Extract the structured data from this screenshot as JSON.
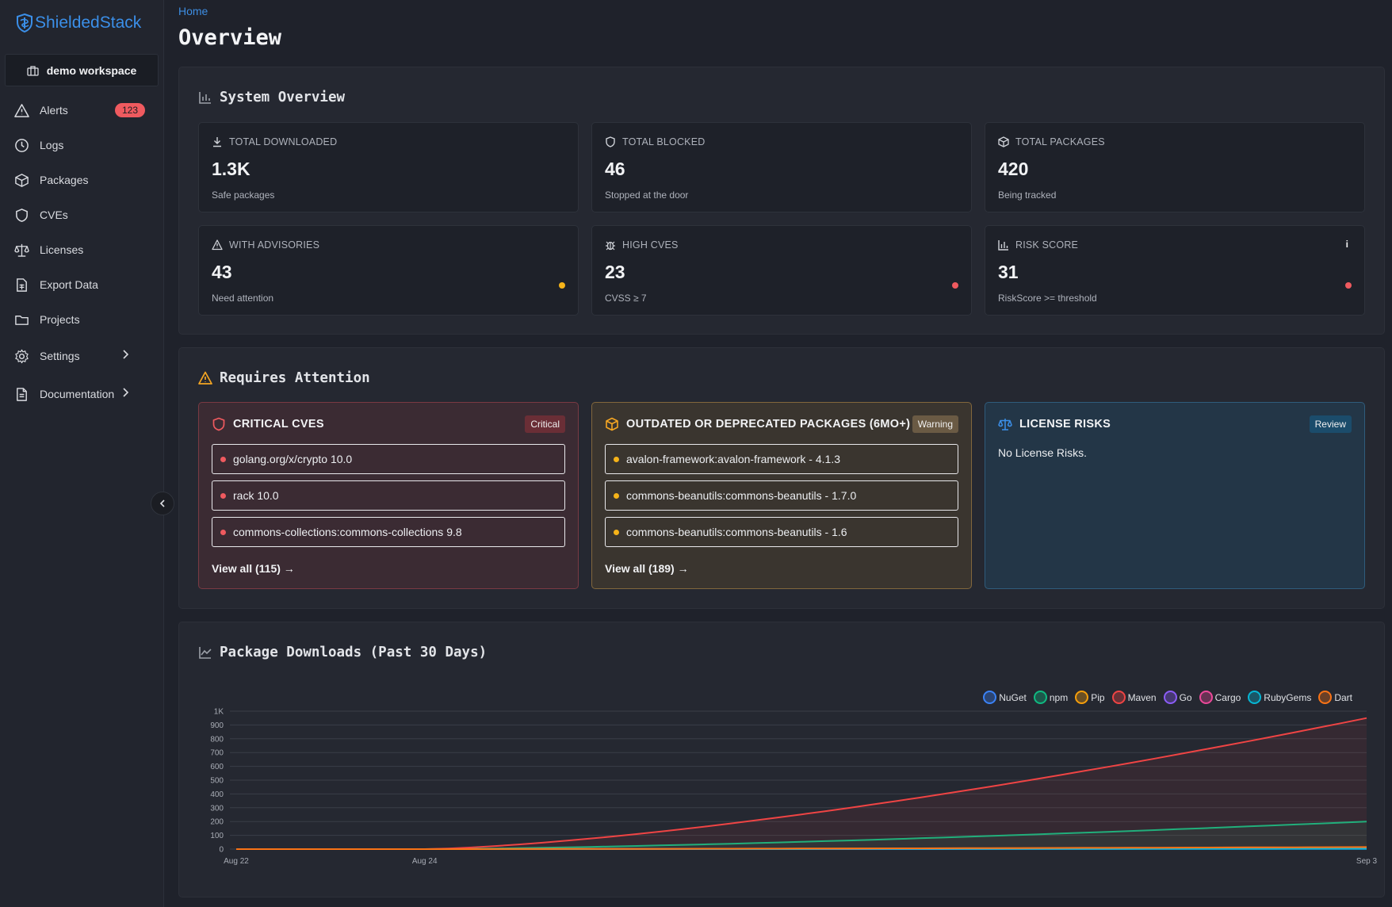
{
  "app": {
    "name": "ShieldedStack",
    "workspace": "demo workspace"
  },
  "sidebar": {
    "items": [
      {
        "label": "Alerts",
        "badge": "123",
        "icon": "alert-triangle-icon"
      },
      {
        "label": "Logs",
        "icon": "clock-icon"
      },
      {
        "label": "Packages",
        "icon": "package-icon"
      },
      {
        "label": "CVEs",
        "icon": "shield-icon"
      },
      {
        "label": "Licenses",
        "icon": "scale-icon"
      },
      {
        "label": "Export Data",
        "icon": "file-spreadsheet-icon"
      },
      {
        "label": "Projects",
        "icon": "folder-icon"
      },
      {
        "label": "Settings",
        "icon": "gear-icon"
      },
      {
        "label": "Documentation",
        "icon": "document-icon"
      }
    ]
  },
  "breadcrumb": "Home",
  "page_title": "Overview",
  "overview": {
    "title": "System Overview",
    "stats": [
      {
        "label": "TOTAL DOWNLOADED",
        "value": "1.3K",
        "sub": "Safe packages"
      },
      {
        "label": "TOTAL BLOCKED",
        "value": "46",
        "sub": "Stopped at the door"
      },
      {
        "label": "TOTAL PACKAGES",
        "value": "420",
        "sub": "Being tracked"
      },
      {
        "label": "WITH ADVISORIES",
        "value": "43",
        "sub": "Need attention",
        "status_color": "#f5b319"
      },
      {
        "label": "HIGH CVES",
        "value": "23",
        "sub": "CVSS ≥ 7",
        "status_color": "#ef5a5f"
      },
      {
        "label": "RISK SCORE",
        "value": "31",
        "sub": "RiskScore >= threshold",
        "status_color": "#ef5a5f",
        "info": "i"
      }
    ]
  },
  "attention": {
    "title": "Requires Attention",
    "critical": {
      "title": "CRITICAL CVES",
      "tag": "Critical",
      "items": [
        "golang.org/x/crypto 10.0",
        "rack 10.0",
        "commons-collections:commons-collections 9.8"
      ],
      "view_all": "View all (115) →"
    },
    "outdated": {
      "title": "OUTDATED OR DEPRECATED PACKAGES (6MO+)",
      "tag": "Warning",
      "items": [
        "avalon-framework:avalon-framework - 4.1.3",
        "commons-beanutils:commons-beanutils - 1.7.0",
        "commons-beanutils:commons-beanutils - 1.6"
      ],
      "view_all": "View all (189) →"
    },
    "license": {
      "title": "LICENSE RISKS",
      "tag": "Review",
      "message": "No License Risks."
    }
  },
  "downloads": {
    "title": "Package Downloads (Past 30 Days)"
  },
  "chart_data": {
    "type": "line",
    "x": [
      "Aug 22",
      "Aug 24",
      "Sep 3"
    ],
    "y_ticks": [
      "0",
      "100",
      "200",
      "300",
      "400",
      "500",
      "600",
      "700",
      "800",
      "900",
      "1K"
    ],
    "ylim": [
      0,
      1000
    ],
    "legend_position": "top-right",
    "series": [
      {
        "name": "NuGet",
        "color": "#3b82f6",
        "values": [
          0,
          0,
          2
        ]
      },
      {
        "name": "npm",
        "color": "#10b981",
        "values": [
          0,
          0,
          200
        ]
      },
      {
        "name": "Pip",
        "color": "#f59e0b",
        "values": [
          0,
          0,
          12
        ]
      },
      {
        "name": "Maven",
        "color": "#ef4444",
        "values": [
          0,
          0,
          950
        ]
      },
      {
        "name": "Go",
        "color": "#8b5cf6",
        "values": [
          0,
          0,
          4
        ]
      },
      {
        "name": "Cargo",
        "color": "#ec4899",
        "values": [
          0,
          0,
          6
        ]
      },
      {
        "name": "RubyGems",
        "color": "#06b6d4",
        "values": [
          0,
          0,
          3
        ]
      },
      {
        "name": "Dart",
        "color": "#f97316",
        "values": [
          0,
          0,
          15
        ]
      }
    ]
  }
}
